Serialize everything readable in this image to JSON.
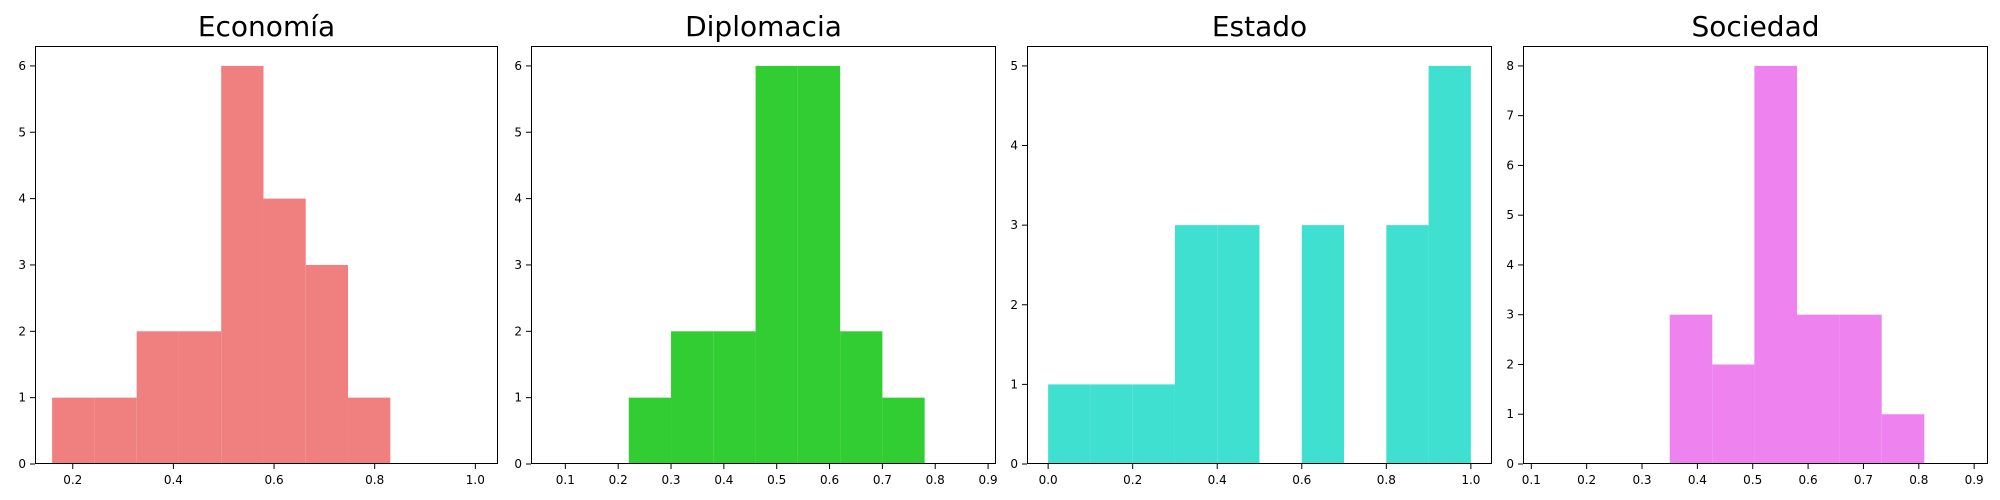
{
  "chart_data": [
    {
      "type": "bar",
      "title": "Economía",
      "color": "#f08080",
      "bins": [
        {
          "x0": 0.159,
          "x1": 0.243,
          "count": 1
        },
        {
          "x0": 0.243,
          "x1": 0.327,
          "count": 1
        },
        {
          "x0": 0.327,
          "x1": 0.411,
          "count": 2
        },
        {
          "x0": 0.411,
          "x1": 0.495,
          "count": 2
        },
        {
          "x0": 0.495,
          "x1": 0.579,
          "count": 6
        },
        {
          "x0": 0.579,
          "x1": 0.663,
          "count": 4
        },
        {
          "x0": 0.663,
          "x1": 0.747,
          "count": 3
        },
        {
          "x0": 0.747,
          "x1": 0.831,
          "count": 1
        }
      ],
      "xlim": [
        0.125,
        1.045
      ],
      "ylim": [
        0,
        6.3
      ],
      "xticks": [
        0.2,
        0.4,
        0.6,
        0.8,
        1.0
      ],
      "xtick_labels": [
        "0.2",
        "0.4",
        "0.6",
        "0.8",
        "1.0"
      ],
      "yticks": [
        0,
        1,
        2,
        3,
        4,
        5,
        6
      ],
      "ytick_labels": [
        "0",
        "1",
        "2",
        "3",
        "4",
        "5",
        "6"
      ]
    },
    {
      "type": "bar",
      "title": "Diplomacia",
      "color": "#32cd32",
      "bins": [
        {
          "x0": 0.22,
          "x1": 0.3,
          "count": 1
        },
        {
          "x0": 0.3,
          "x1": 0.38,
          "count": 2
        },
        {
          "x0": 0.38,
          "x1": 0.46,
          "count": 2
        },
        {
          "x0": 0.46,
          "x1": 0.54,
          "count": 6
        },
        {
          "x0": 0.54,
          "x1": 0.62,
          "count": 6
        },
        {
          "x0": 0.62,
          "x1": 0.7,
          "count": 2
        },
        {
          "x0": 0.7,
          "x1": 0.78,
          "count": 1
        }
      ],
      "xlim": [
        0.035,
        0.915
      ],
      "ylim": [
        0,
        6.3
      ],
      "xticks": [
        0.1,
        0.2,
        0.3,
        0.4,
        0.5,
        0.6,
        0.7,
        0.8,
        0.9
      ],
      "xtick_labels": [
        "0.1",
        "0.2",
        "0.3",
        "0.4",
        "0.5",
        "0.6",
        "0.7",
        "0.8",
        "0.9"
      ],
      "yticks": [
        0,
        1,
        2,
        3,
        4,
        5,
        6
      ],
      "ytick_labels": [
        "0",
        "1",
        "2",
        "3",
        "4",
        "5",
        "6"
      ]
    },
    {
      "type": "bar",
      "title": "Estado",
      "color": "#40e0d0",
      "bins": [
        {
          "x0": 0.0,
          "x1": 0.1,
          "count": 1
        },
        {
          "x0": 0.1,
          "x1": 0.2,
          "count": 1
        },
        {
          "x0": 0.2,
          "x1": 0.3,
          "count": 1
        },
        {
          "x0": 0.3,
          "x1": 0.4,
          "count": 3
        },
        {
          "x0": 0.4,
          "x1": 0.5,
          "count": 3
        },
        {
          "x0": 0.5,
          "x1": 0.6,
          "count": 0
        },
        {
          "x0": 0.6,
          "x1": 0.7,
          "count": 3
        },
        {
          "x0": 0.7,
          "x1": 0.8,
          "count": 0
        },
        {
          "x0": 0.8,
          "x1": 0.9,
          "count": 3
        },
        {
          "x0": 0.9,
          "x1": 1.0,
          "count": 5
        }
      ],
      "xlim": [
        -0.05,
        1.05
      ],
      "ylim": [
        0,
        5.25
      ],
      "xticks": [
        0.0,
        0.2,
        0.4,
        0.6,
        0.8,
        1.0
      ],
      "xtick_labels": [
        "0.0",
        "0.2",
        "0.4",
        "0.6",
        "0.8",
        "1.0"
      ],
      "yticks": [
        0,
        1,
        2,
        3,
        4,
        5
      ],
      "ytick_labels": [
        "0",
        "1",
        "2",
        "3",
        "4",
        "5"
      ]
    },
    {
      "type": "bar",
      "title": "Sociedad",
      "color": "#ee82ee",
      "bins": [
        {
          "x0": 0.35,
          "x1": 0.427,
          "count": 3
        },
        {
          "x0": 0.427,
          "x1": 0.503,
          "count": 2
        },
        {
          "x0": 0.503,
          "x1": 0.58,
          "count": 8
        },
        {
          "x0": 0.58,
          "x1": 0.657,
          "count": 3
        },
        {
          "x0": 0.657,
          "x1": 0.733,
          "count": 3
        },
        {
          "x0": 0.733,
          "x1": 0.81,
          "count": 1
        }
      ],
      "xlim": [
        0.085,
        0.925
      ],
      "ylim": [
        0,
        8.4
      ],
      "xticks": [
        0.1,
        0.2,
        0.3,
        0.4,
        0.5,
        0.6,
        0.7,
        0.8,
        0.9
      ],
      "xtick_labels": [
        "0.1",
        "0.2",
        "0.3",
        "0.4",
        "0.5",
        "0.6",
        "0.7",
        "0.8",
        "0.9"
      ],
      "yticks": [
        0,
        1,
        2,
        3,
        4,
        5,
        6,
        7,
        8
      ],
      "ytick_labels": [
        "0",
        "1",
        "2",
        "3",
        "4",
        "5",
        "6",
        "7",
        "8"
      ]
    }
  ]
}
